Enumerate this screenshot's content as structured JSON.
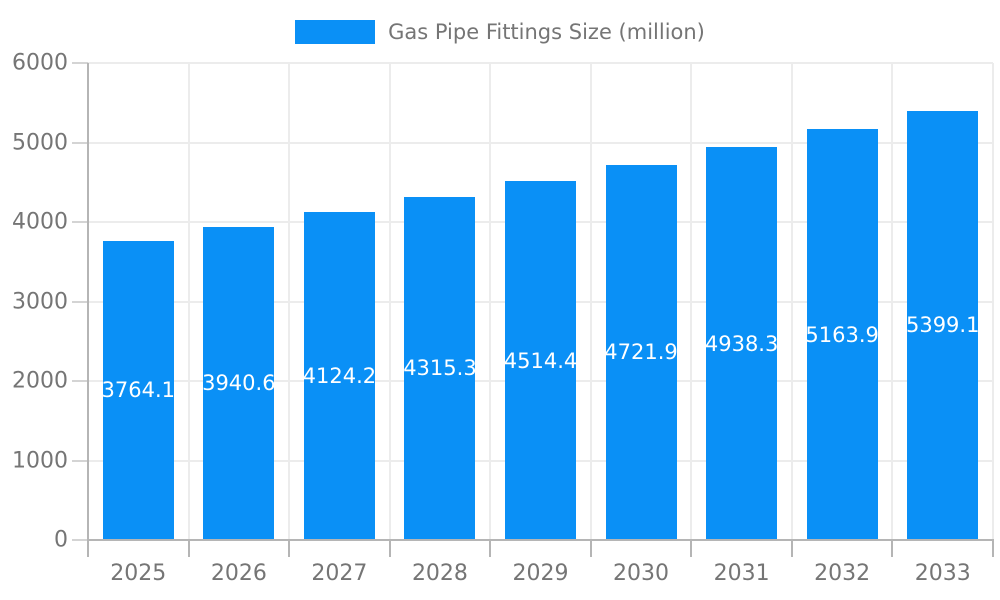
{
  "legend": {
    "label": "Gas Pipe Fittings Size (million)"
  },
  "chart_data": {
    "type": "bar",
    "title": "Gas Pipe Fittings Size (million)",
    "categories": [
      "2025",
      "2026",
      "2027",
      "2028",
      "2029",
      "2030",
      "2031",
      "2032",
      "2033"
    ],
    "series": [
      {
        "name": "Gas Pipe Fittings Size (million)",
        "values": [
          3764.1,
          3940.6,
          4124.2,
          4315.3,
          4514.4,
          4721.9,
          4938.3,
          5163.9,
          5399.1
        ]
      }
    ],
    "value_labels": [
      "3764.1",
      "3940.6",
      "4124.2",
      "4315.3",
      "4514.4",
      "4721.9",
      "4938.3",
      "5163.9",
      "5399.1"
    ],
    "xlabel": "",
    "ylabel": "",
    "ylim": [
      0,
      6000
    ],
    "yticks": [
      0,
      1000,
      2000,
      3000,
      4000,
      5000,
      6000
    ],
    "grid": true,
    "legend_position": "top",
    "colors": {
      "bar": "#0a90f6",
      "value_label": "#ffffff",
      "grid_line": "#ececec",
      "axis_line": "#b5b5b5",
      "y_tick": "#d4d4d4",
      "tick_label": "#757575",
      "background": "#ffffff"
    }
  }
}
